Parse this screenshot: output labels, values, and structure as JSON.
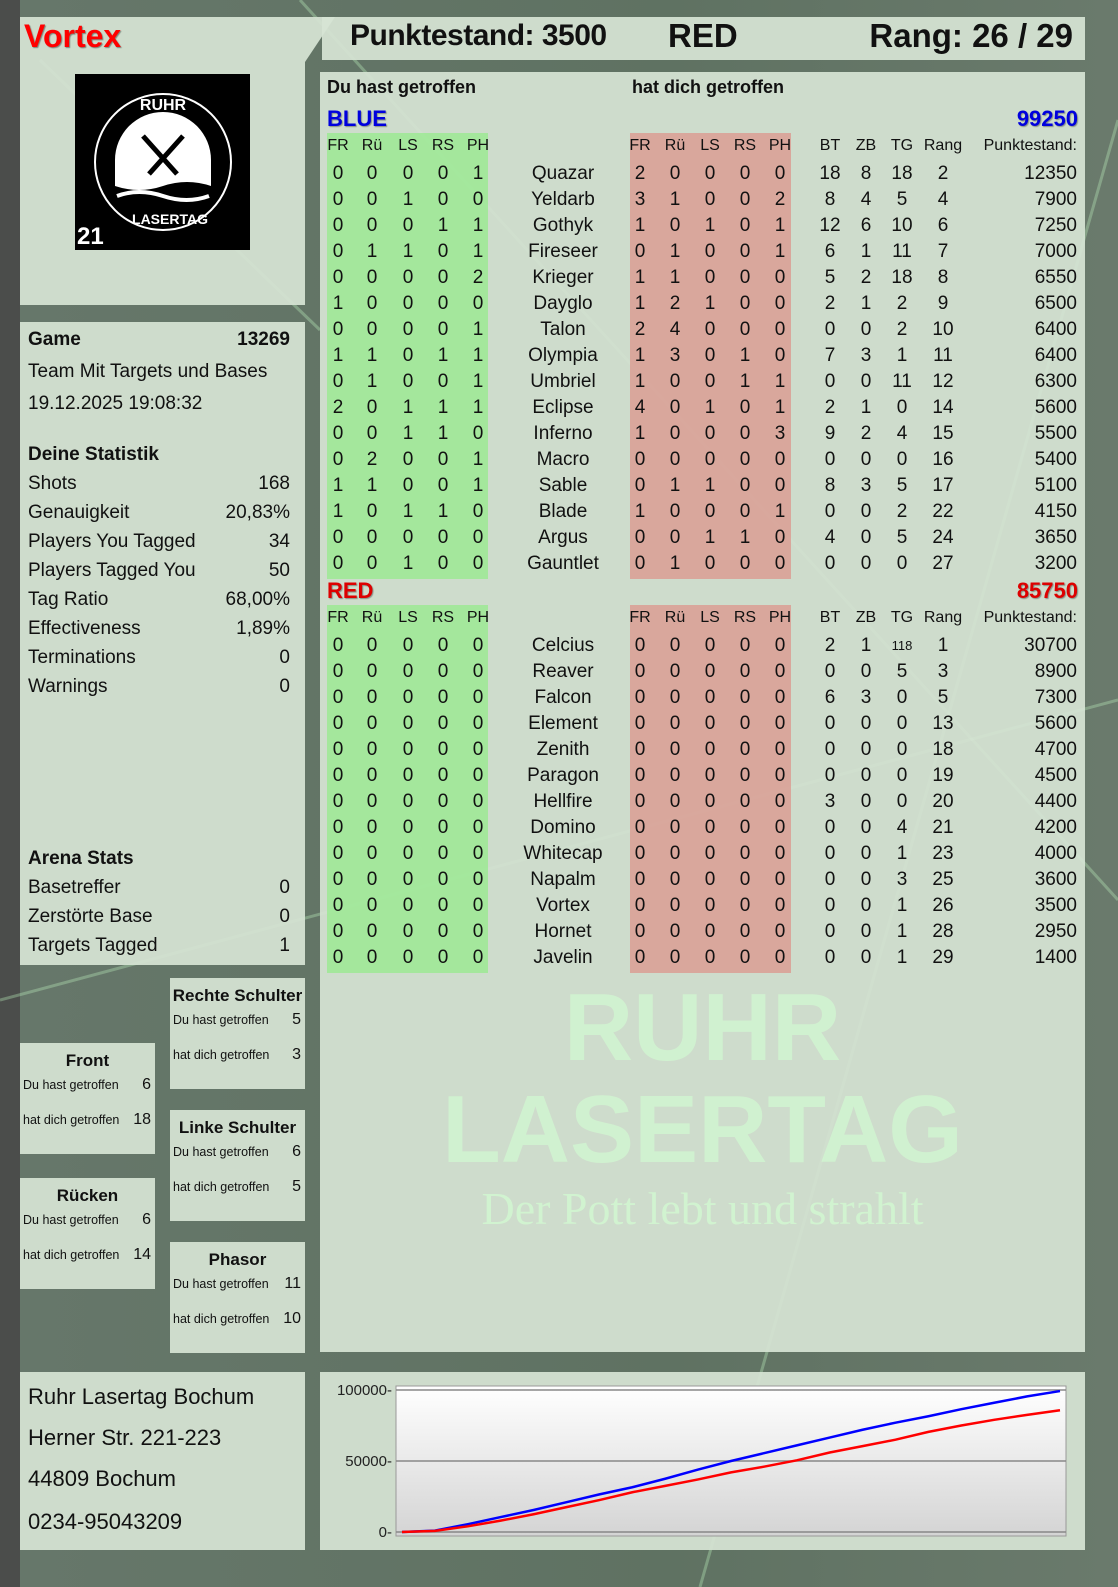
{
  "player": {
    "name": "Vortex",
    "name_color": "#ff0000"
  },
  "header": {
    "score_label": "Punktestand: 3500",
    "team": "RED",
    "rank_label": "Rang: 26 / 29"
  },
  "logo": {
    "text_top": "RUHR",
    "text_bottom": "LASERTAG",
    "badge": "21"
  },
  "game": {
    "label": "Game",
    "id": "13269",
    "mode": "Team Mit Targets und Bases",
    "datetime": "19.12.2025 19:08:32"
  },
  "stats": {
    "title": "Deine Statistik",
    "items": [
      {
        "label": "Shots",
        "value": "168"
      },
      {
        "label": "Genauigkeit",
        "value": "20,83%"
      },
      {
        "label": "Players You Tagged",
        "value": "34"
      },
      {
        "label": "Players Tagged You",
        "value": "50"
      },
      {
        "label": "Tag Ratio",
        "value": "68,00%"
      },
      {
        "label": "Effectiveness",
        "value": "1,89%"
      },
      {
        "label": "Terminations",
        "value": "0"
      },
      {
        "label": "Warnings",
        "value": "0"
      }
    ]
  },
  "arena": {
    "title": "Arena Stats",
    "items": [
      {
        "label": "Basetreffer",
        "value": "0"
      },
      {
        "label": "Zerstörte Base",
        "value": "0"
      },
      {
        "label": "Targets Tagged",
        "value": "1"
      }
    ]
  },
  "hitboxes": {
    "rechte_schulter": {
      "title": "Rechte Schulter",
      "hit_label": "Du hast getroffen",
      "hit": "5",
      "got_label": "hat dich getroffen",
      "got": "3"
    },
    "front": {
      "title": "Front",
      "hit_label": "Du hast getroffen",
      "hit": "6",
      "got_label": "hat dich getroffen",
      "got": "18"
    },
    "linke_schulter": {
      "title": "Linke Schulter",
      "hit_label": "Du hast getroffen",
      "hit": "6",
      "got_label": "hat dich getroffen",
      "got": "5"
    },
    "ruecken": {
      "title": "Rücken",
      "hit_label": "Du hast getroffen",
      "hit": "6",
      "got_label": "hat dich getroffen",
      "got": "14"
    },
    "phasor": {
      "title": "Phasor",
      "hit_label": "Du hast getroffen",
      "hit": "11",
      "got_label": "hat dich getroffen",
      "got": "10"
    }
  },
  "address": {
    "line1": "Ruhr Lasertag Bochum",
    "line2": "Herner Str. 221-223",
    "line3": "44809 Bochum",
    "phone": "0234-95043209"
  },
  "main": {
    "you_hit_label": "Du hast getroffen",
    "hit_you_label": "hat dich getroffen",
    "hit_columns": [
      "FR",
      "Rü",
      "LS",
      "RS",
      "PH"
    ],
    "stat_columns": [
      "BT",
      "ZB",
      "TG",
      "Rang"
    ],
    "score_column": "Punktestand:",
    "teams": [
      {
        "name": "BLUE",
        "color": "#0000dd",
        "total": "99250",
        "players": [
          {
            "n": "Quazar",
            "h": [
              0,
              0,
              0,
              0,
              1
            ],
            "g": [
              2,
              0,
              0,
              0,
              0
            ],
            "s": [
              18,
              8,
              18,
              2
            ],
            "p": 12350
          },
          {
            "n": "Yeldarb",
            "h": [
              0,
              0,
              1,
              0,
              0
            ],
            "g": [
              3,
              1,
              0,
              0,
              2
            ],
            "s": [
              8,
              4,
              5,
              4
            ],
            "p": 7900
          },
          {
            "n": "Gothyk",
            "h": [
              0,
              0,
              0,
              1,
              1
            ],
            "g": [
              1,
              0,
              1,
              0,
              1
            ],
            "s": [
              12,
              6,
              10,
              6
            ],
            "p": 7250
          },
          {
            "n": "Fireseer",
            "h": [
              0,
              1,
              1,
              0,
              1
            ],
            "g": [
              0,
              1,
              0,
              0,
              1
            ],
            "s": [
              6,
              1,
              11,
              7
            ],
            "p": 7000
          },
          {
            "n": "Krieger",
            "h": [
              0,
              0,
              0,
              0,
              2
            ],
            "g": [
              1,
              1,
              0,
              0,
              0
            ],
            "s": [
              5,
              2,
              18,
              8
            ],
            "p": 6550
          },
          {
            "n": "Dayglo",
            "h": [
              1,
              0,
              0,
              0,
              0
            ],
            "g": [
              1,
              2,
              1,
              0,
              0
            ],
            "s": [
              2,
              1,
              2,
              9
            ],
            "p": 6500
          },
          {
            "n": "Talon",
            "h": [
              0,
              0,
              0,
              0,
              1
            ],
            "g": [
              2,
              4,
              0,
              0,
              0
            ],
            "s": [
              0,
              0,
              2,
              10
            ],
            "p": 6400
          },
          {
            "n": "Olympia",
            "h": [
              1,
              1,
              0,
              1,
              1
            ],
            "g": [
              1,
              3,
              0,
              1,
              0
            ],
            "s": [
              7,
              3,
              1,
              11
            ],
            "p": 6400
          },
          {
            "n": "Umbriel",
            "h": [
              0,
              1,
              0,
              0,
              1
            ],
            "g": [
              1,
              0,
              0,
              1,
              1
            ],
            "s": [
              0,
              0,
              11,
              12
            ],
            "p": 6300
          },
          {
            "n": "Eclipse",
            "h": [
              2,
              0,
              1,
              1,
              1
            ],
            "g": [
              4,
              0,
              1,
              0,
              1
            ],
            "s": [
              2,
              1,
              0,
              14
            ],
            "p": 5600
          },
          {
            "n": "Inferno",
            "h": [
              0,
              0,
              1,
              1,
              0
            ],
            "g": [
              1,
              0,
              0,
              0,
              3
            ],
            "s": [
              9,
              2,
              4,
              15
            ],
            "p": 5500
          },
          {
            "n": "Macro",
            "h": [
              0,
              2,
              0,
              0,
              1
            ],
            "g": [
              0,
              0,
              0,
              0,
              0
            ],
            "s": [
              0,
              0,
              0,
              16
            ],
            "p": 5400
          },
          {
            "n": "Sable",
            "h": [
              1,
              1,
              0,
              0,
              1
            ],
            "g": [
              0,
              1,
              1,
              0,
              0
            ],
            "s": [
              8,
              3,
              5,
              17
            ],
            "p": 5100
          },
          {
            "n": "Blade",
            "h": [
              1,
              0,
              1,
              1,
              0
            ],
            "g": [
              1,
              0,
              0,
              0,
              1
            ],
            "s": [
              0,
              0,
              2,
              22
            ],
            "p": 4150
          },
          {
            "n": "Argus",
            "h": [
              0,
              0,
              0,
              0,
              0
            ],
            "g": [
              0,
              0,
              1,
              1,
              0
            ],
            "s": [
              4,
              0,
              5,
              24
            ],
            "p": 3650
          },
          {
            "n": "Gauntlet",
            "h": [
              0,
              0,
              1,
              0,
              0
            ],
            "g": [
              0,
              1,
              0,
              0,
              0
            ],
            "s": [
              0,
              0,
              0,
              27
            ],
            "p": 3200
          }
        ]
      },
      {
        "name": "RED",
        "color": "#dd0000",
        "total": "85750",
        "players": [
          {
            "n": "Celcius",
            "h": [
              0,
              0,
              0,
              0,
              0
            ],
            "g": [
              0,
              0,
              0,
              0,
              0
            ],
            "s": [
              2,
              1,
              118,
              1
            ],
            "p": 30700
          },
          {
            "n": "Reaver",
            "h": [
              0,
              0,
              0,
              0,
              0
            ],
            "g": [
              0,
              0,
              0,
              0,
              0
            ],
            "s": [
              0,
              0,
              5,
              3
            ],
            "p": 8900
          },
          {
            "n": "Falcon",
            "h": [
              0,
              0,
              0,
              0,
              0
            ],
            "g": [
              0,
              0,
              0,
              0,
              0
            ],
            "s": [
              6,
              3,
              0,
              5
            ],
            "p": 7300
          },
          {
            "n": "Element",
            "h": [
              0,
              0,
              0,
              0,
              0
            ],
            "g": [
              0,
              0,
              0,
              0,
              0
            ],
            "s": [
              0,
              0,
              0,
              13
            ],
            "p": 5600
          },
          {
            "n": "Zenith",
            "h": [
              0,
              0,
              0,
              0,
              0
            ],
            "g": [
              0,
              0,
              0,
              0,
              0
            ],
            "s": [
              0,
              0,
              0,
              18
            ],
            "p": 4700
          },
          {
            "n": "Paragon",
            "h": [
              0,
              0,
              0,
              0,
              0
            ],
            "g": [
              0,
              0,
              0,
              0,
              0
            ],
            "s": [
              0,
              0,
              0,
              19
            ],
            "p": 4500
          },
          {
            "n": "Hellfire",
            "h": [
              0,
              0,
              0,
              0,
              0
            ],
            "g": [
              0,
              0,
              0,
              0,
              0
            ],
            "s": [
              3,
              0,
              0,
              20
            ],
            "p": 4400
          },
          {
            "n": "Domino",
            "h": [
              0,
              0,
              0,
              0,
              0
            ],
            "g": [
              0,
              0,
              0,
              0,
              0
            ],
            "s": [
              0,
              0,
              4,
              21
            ],
            "p": 4200
          },
          {
            "n": "Whitecap",
            "h": [
              0,
              0,
              0,
              0,
              0
            ],
            "g": [
              0,
              0,
              0,
              0,
              0
            ],
            "s": [
              0,
              0,
              1,
              23
            ],
            "p": 4000
          },
          {
            "n": "Napalm",
            "h": [
              0,
              0,
              0,
              0,
              0
            ],
            "g": [
              0,
              0,
              0,
              0,
              0
            ],
            "s": [
              0,
              0,
              3,
              25
            ],
            "p": 3600
          },
          {
            "n": "Vortex",
            "h": [
              0,
              0,
              0,
              0,
              0
            ],
            "g": [
              0,
              0,
              0,
              0,
              0
            ],
            "s": [
              0,
              0,
              1,
              26
            ],
            "p": 3500
          },
          {
            "n": "Hornet",
            "h": [
              0,
              0,
              0,
              0,
              0
            ],
            "g": [
              0,
              0,
              0,
              0,
              0
            ],
            "s": [
              0,
              0,
              1,
              28
            ],
            "p": 2950
          },
          {
            "n": "Javelin",
            "h": [
              0,
              0,
              0,
              0,
              0
            ],
            "g": [
              0,
              0,
              0,
              0,
              0
            ],
            "s": [
              0,
              0,
              1,
              29
            ],
            "p": 1400
          }
        ]
      }
    ]
  },
  "watermark": {
    "line1": "RUHR",
    "line2": "LASERTAG",
    "slogan": "Der Pott lebt und strahlt"
  },
  "chart_data": {
    "type": "line",
    "ylim": [
      0,
      100000
    ],
    "yticks": [
      "100000",
      "50000",
      "0"
    ],
    "grid": true,
    "x": [
      0,
      1,
      2,
      3,
      4,
      5,
      6,
      7,
      8,
      9,
      10,
      11,
      12,
      13,
      14,
      15,
      16,
      17,
      18,
      19,
      20
    ],
    "series": [
      {
        "color": "#0000ff",
        "values": [
          0,
          1000,
          5500,
          10500,
          15500,
          21000,
          26500,
          31500,
          37500,
          44000,
          50000,
          55500,
          61000,
          66500,
          72000,
          77000,
          81500,
          86500,
          91000,
          95500,
          99250
        ]
      },
      {
        "color": "#ff0000",
        "values": [
          0,
          800,
          4000,
          8000,
          12500,
          17500,
          22500,
          28000,
          32500,
          37000,
          42000,
          46000,
          50500,
          56000,
          60500,
          65000,
          70500,
          75000,
          79000,
          82500,
          85750
        ]
      }
    ]
  }
}
